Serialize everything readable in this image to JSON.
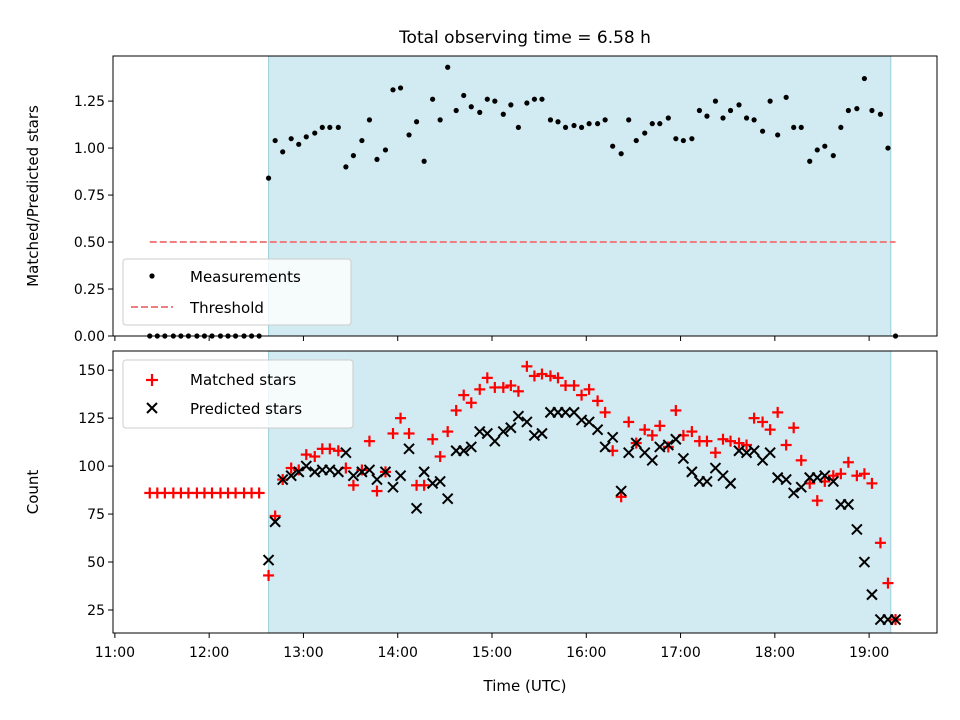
{
  "figure": {
    "title": "Total observing time = 6.58 h",
    "xlabel": "Time (UTC)",
    "xticks": [
      {
        "value": 11,
        "label": "11:00"
      },
      {
        "value": 12,
        "label": "12:00"
      },
      {
        "value": 13,
        "label": "13:00"
      },
      {
        "value": 14,
        "label": "14:00"
      },
      {
        "value": 15,
        "label": "15:00"
      },
      {
        "value": 16,
        "label": "16:00"
      },
      {
        "value": 17,
        "label": "17:00"
      },
      {
        "value": 18,
        "label": "18:00"
      },
      {
        "value": 19,
        "label": "19:00"
      }
    ],
    "xlim": [
      10.98,
      19.72
    ],
    "shade_span": [
      12.63,
      19.23
    ],
    "shade_color": "#add8e6"
  },
  "chart_data": [
    {
      "type": "scatter",
      "ylabel": "Matched/Predicted stars",
      "ylim": [
        0,
        1.49
      ],
      "yticks": [
        {
          "value": 0,
          "label": "0.00"
        },
        {
          "value": 0.25,
          "label": "0.25"
        },
        {
          "value": 0.5,
          "label": "0.50"
        },
        {
          "value": 0.75,
          "label": "0.75"
        },
        {
          "value": 1.0,
          "label": "1.00"
        },
        {
          "value": 1.25,
          "label": "1.25"
        }
      ],
      "legend_position": "lower-left",
      "series": [
        {
          "name": "Measurements",
          "color": "#000000",
          "marker": "dot",
          "x": [
            11.37,
            11.45,
            11.53,
            11.62,
            11.7,
            11.78,
            11.87,
            11.95,
            12.03,
            12.12,
            12.2,
            12.28,
            12.37,
            12.45,
            12.53,
            12.63,
            12.7,
            12.78,
            12.87,
            12.95,
            13.03,
            13.12,
            13.2,
            13.28,
            13.37,
            13.45,
            13.53,
            13.62,
            13.7,
            13.78,
            13.87,
            13.95,
            14.03,
            14.12,
            14.2,
            14.28,
            14.37,
            14.45,
            14.53,
            14.62,
            14.7,
            14.78,
            14.87,
            14.95,
            15.03,
            15.12,
            15.2,
            15.28,
            15.37,
            15.45,
            15.53,
            15.62,
            15.7,
            15.78,
            15.87,
            15.95,
            16.03,
            16.12,
            16.2,
            16.28,
            16.37,
            16.45,
            16.53,
            16.62,
            16.7,
            16.78,
            16.87,
            16.95,
            17.03,
            17.12,
            17.2,
            17.28,
            17.37,
            17.45,
            17.53,
            17.62,
            17.7,
            17.78,
            17.87,
            17.95,
            18.03,
            18.12,
            18.2,
            18.28,
            18.37,
            18.45,
            18.53,
            18.62,
            18.7,
            18.78,
            18.87,
            18.95,
            19.03,
            19.12,
            19.2,
            19.28
          ],
          "y": [
            0,
            0,
            0,
            0,
            0,
            0,
            0,
            0,
            0,
            0,
            0,
            0,
            0,
            0,
            0,
            0.84,
            1.04,
            0.98,
            1.05,
            1.02,
            1.06,
            1.08,
            1.11,
            1.11,
            1.11,
            0.9,
            0.96,
            1.04,
            1.15,
            0.94,
            0.99,
            1.31,
            1.32,
            1.07,
            1.14,
            0.93,
            1.26,
            1.15,
            1.43,
            1.2,
            1.28,
            1.22,
            1.19,
            1.26,
            1.25,
            1.18,
            1.23,
            1.11,
            1.24,
            1.26,
            1.26,
            1.15,
            1.14,
            1.11,
            1.12,
            1.11,
            1.13,
            1.13,
            1.15,
            1.01,
            0.97,
            1.15,
            1.04,
            1.08,
            1.13,
            1.13,
            1.16,
            1.05,
            1.04,
            1.05,
            1.2,
            1.17,
            1.25,
            1.16,
            1.2,
            1.23,
            1.16,
            1.15,
            1.09,
            1.25,
            1.07,
            1.27,
            1.11,
            1.11,
            0.93,
            0.99,
            1.01,
            0.96,
            1.11,
            1.2,
            1.21,
            1.37,
            1.2,
            1.18,
            1.0,
            0.0
          ]
        },
        {
          "name": "Threshold",
          "color": "#f08080",
          "marker": "dashed-line",
          "x": [
            11.37,
            19.28
          ],
          "y": [
            0.5,
            0.5
          ]
        }
      ]
    },
    {
      "type": "scatter",
      "ylabel": "Count",
      "ylim": [
        13,
        160
      ],
      "yticks": [
        {
          "value": 25,
          "label": "25"
        },
        {
          "value": 50,
          "label": "50"
        },
        {
          "value": 75,
          "label": "75"
        },
        {
          "value": 100,
          "label": "100"
        },
        {
          "value": 125,
          "label": "125"
        },
        {
          "value": 150,
          "label": "150"
        }
      ],
      "legend_position": "upper-left",
      "series": [
        {
          "name": "Matched stars",
          "color": "#ff0000",
          "marker": "plus",
          "x": [
            11.37,
            11.45,
            11.53,
            11.62,
            11.7,
            11.78,
            11.87,
            11.95,
            12.03,
            12.12,
            12.2,
            12.28,
            12.37,
            12.45,
            12.53,
            12.63,
            12.7,
            12.78,
            12.87,
            12.95,
            13.03,
            13.12,
            13.2,
            13.28,
            13.37,
            13.45,
            13.53,
            13.62,
            13.7,
            13.78,
            13.87,
            13.95,
            14.03,
            14.12,
            14.2,
            14.28,
            14.37,
            14.45,
            14.53,
            14.62,
            14.7,
            14.78,
            14.87,
            14.95,
            15.03,
            15.12,
            15.2,
            15.28,
            15.37,
            15.45,
            15.53,
            15.62,
            15.7,
            15.78,
            15.87,
            15.95,
            16.03,
            16.12,
            16.2,
            16.28,
            16.37,
            16.45,
            16.53,
            16.62,
            16.7,
            16.78,
            16.87,
            16.95,
            17.03,
            17.12,
            17.2,
            17.28,
            17.37,
            17.45,
            17.53,
            17.62,
            17.7,
            17.78,
            17.87,
            17.95,
            18.03,
            18.12,
            18.2,
            18.28,
            18.37,
            18.45,
            18.53,
            18.62,
            18.7,
            18.78,
            18.87,
            18.95,
            19.03,
            19.12,
            19.2,
            19.28
          ],
          "y": [
            86,
            86,
            86,
            86,
            86,
            86,
            86,
            86,
            86,
            86,
            86,
            86,
            86,
            86,
            86,
            43,
            74,
            93,
            99,
            98,
            106,
            105,
            109,
            109,
            108,
            99,
            90,
            98,
            113,
            87,
            97,
            117,
            125,
            117,
            90,
            90,
            114,
            105,
            118,
            129,
            137,
            133,
            140,
            146,
            141,
            141,
            142,
            139,
            152,
            147,
            148,
            147,
            146,
            142,
            142,
            137,
            140,
            134,
            128,
            108,
            84,
            123,
            112,
            119,
            116,
            121,
            110,
            129,
            116,
            118,
            113,
            113,
            107,
            114,
            113,
            112,
            111,
            125,
            123,
            119,
            128,
            111,
            120,
            103,
            91,
            82,
            92,
            95,
            96,
            102,
            95,
            96,
            91,
            60,
            39,
            20
          ]
        },
        {
          "name": "Predicted stars",
          "color": "#000000",
          "marker": "x",
          "x": [
            12.63,
            12.7,
            12.78,
            12.87,
            12.95,
            13.03,
            13.12,
            13.2,
            13.28,
            13.37,
            13.45,
            13.53,
            13.62,
            13.7,
            13.78,
            13.87,
            13.95,
            14.03,
            14.12,
            14.2,
            14.28,
            14.37,
            14.45,
            14.53,
            14.62,
            14.7,
            14.78,
            14.87,
            14.95,
            15.03,
            15.12,
            15.2,
            15.28,
            15.37,
            15.45,
            15.53,
            15.62,
            15.7,
            15.78,
            15.87,
            15.95,
            16.03,
            16.12,
            16.2,
            16.28,
            16.37,
            16.45,
            16.53,
            16.62,
            16.7,
            16.78,
            16.87,
            16.95,
            17.03,
            17.12,
            17.2,
            17.28,
            17.37,
            17.45,
            17.53,
            17.62,
            17.7,
            17.78,
            17.87,
            17.95,
            18.03,
            18.12,
            18.2,
            18.28,
            18.37,
            18.45,
            18.53,
            18.62,
            18.7,
            18.78,
            18.87,
            18.95,
            19.03,
            19.12,
            19.2,
            19.28
          ],
          "y": [
            51,
            71,
            93,
            95,
            97,
            100,
            97,
            98,
            98,
            97,
            107,
            95,
            97,
            98,
            93,
            97,
            89,
            95,
            109,
            78,
            97,
            91,
            92,
            83,
            108,
            108,
            110,
            118,
            117,
            113,
            118,
            120,
            126,
            123,
            116,
            117,
            128,
            128,
            128,
            128,
            124,
            123,
            119,
            110,
            115,
            87,
            107,
            112,
            107,
            103,
            110,
            111,
            114,
            104,
            97,
            92,
            92,
            99,
            95,
            91,
            108,
            107,
            108,
            103,
            107,
            94,
            93,
            86,
            89,
            94,
            94,
            95,
            92,
            80,
            80,
            67,
            50,
            33,
            20,
            20,
            20
          ]
        }
      ]
    }
  ]
}
